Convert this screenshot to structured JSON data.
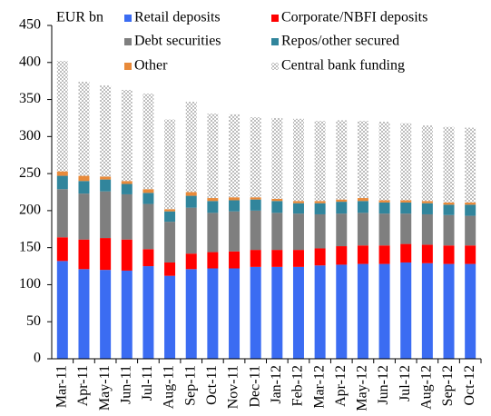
{
  "chart_data": {
    "type": "stacked_bar",
    "y_label": "EUR bn",
    "categories": [
      "Mar-11",
      "Apr-11",
      "May-11",
      "Jun-11",
      "Jul-11",
      "Aug-11",
      "Sep-11",
      "Oct-11",
      "Nov-11",
      "Dec-11",
      "Jan-12",
      "Feb-12",
      "Mar-12",
      "Apr-12",
      "May-12",
      "Jun-12",
      "Jul-12",
      "Aug-12",
      "Sep-12",
      "Oct-12"
    ],
    "series": [
      {
        "name": "Retail deposits",
        "color": "#3b6cf2",
        "values": [
          132,
          121,
          120,
          119,
          125,
          112,
          121,
          122,
          122,
          124,
          124,
          124,
          126,
          127,
          128,
          128,
          130,
          129,
          128,
          128
        ]
      },
      {
        "name": "Corporate/NBFI deposits",
        "color": "#ff0000",
        "values": [
          32,
          40,
          43,
          42,
          23,
          18,
          21,
          22,
          23,
          23,
          23,
          23,
          23,
          25,
          25,
          25,
          25,
          25,
          25,
          25
        ]
      },
      {
        "name": "Debt securities",
        "color": "#7f7f7f",
        "values": [
          65,
          62,
          63,
          61,
          61,
          55,
          62,
          53,
          54,
          53,
          50,
          49,
          46,
          44,
          44,
          43,
          41,
          41,
          41,
          40
        ]
      },
      {
        "name": "Repos/other secured",
        "color": "#31859c",
        "values": [
          18,
          17,
          16,
          14,
          15,
          14,
          16,
          16,
          15,
          15,
          16,
          14,
          15,
          16,
          16,
          15,
          15,
          15,
          14,
          15
        ]
      },
      {
        "name": "Other",
        "color": "#e88a3a",
        "values": [
          6,
          7,
          4,
          4,
          5,
          3,
          5,
          4,
          4,
          3,
          3,
          3,
          3,
          3,
          4,
          3,
          3,
          3,
          3,
          3
        ]
      },
      {
        "name": "Central bank funding",
        "color": "#bdbdbd",
        "pattern": "checker",
        "values": [
          149,
          127,
          123,
          123,
          129,
          121,
          122,
          114,
          112,
          108,
          109,
          111,
          108,
          107,
          104,
          106,
          104,
          102,
          102,
          101
        ]
      }
    ],
    "ylim": [
      0,
      450
    ],
    "yticks": [
      0,
      50,
      100,
      150,
      200,
      250,
      300,
      350,
      400,
      450
    ],
    "legend": "top"
  }
}
